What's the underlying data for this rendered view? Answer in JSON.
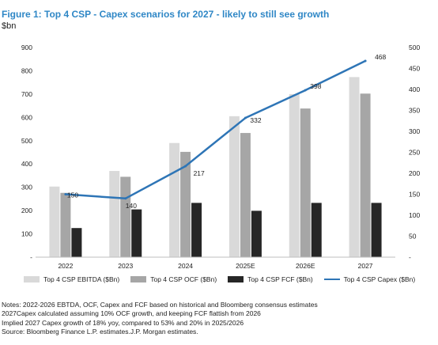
{
  "title": "Figure 1: Top 4 CSP - Capex scenarios for 2027 - likely to still see growth",
  "unit_label": "$bn",
  "chart_data": {
    "type": "bar",
    "categories": [
      "2022",
      "2023",
      "2024",
      "2025E",
      "2026E",
      "2027"
    ],
    "series": [
      {
        "name": "Top 4 CSP EBITDA ($Bn)",
        "kind": "bar",
        "axis": "left",
        "color": "#d9d9d9",
        "values": [
          303,
          370,
          490,
          605,
          700,
          773
        ]
      },
      {
        "name": "Top 4 CSP OCF ($Bn)",
        "kind": "bar",
        "axis": "left",
        "color": "#a6a6a6",
        "values": [
          276,
          345,
          452,
          533,
          638,
          702
        ]
      },
      {
        "name": "Top 4 CSP FCF ($Bn)",
        "kind": "bar",
        "axis": "left",
        "color": "#262626",
        "values": [
          125,
          205,
          233,
          199,
          233,
          233
        ]
      },
      {
        "name": "Top 4 CSP Capex ($Bn)",
        "kind": "line",
        "axis": "right",
        "color": "#2e75b6",
        "values": [
          150,
          140,
          217,
          332,
          398,
          468
        ]
      }
    ],
    "data_labels": [
      "150",
      "140",
      "217",
      "332",
      "398",
      "468"
    ],
    "y_left": {
      "min": 0,
      "max": 900,
      "step": 100,
      "ticks": [
        "-",
        "100",
        "200",
        "300",
        "400",
        "500",
        "600",
        "700",
        "800",
        "900"
      ]
    },
    "y_right": {
      "min": 0,
      "max": 500,
      "step": 50,
      "ticks": [
        "-",
        "50",
        "100",
        "150",
        "200",
        "250",
        "300",
        "350",
        "400",
        "450",
        "500"
      ]
    },
    "grid": false,
    "legend_position": "bottom"
  },
  "notes": [
    "Notes: 2022-2026 EBTDA, OCF, Capex and FCF based on historical and Bloomberg consensus estimates",
    "2027Capex calculated assuming 10% OCF growth, and keeping FCF flattish from 2026",
    "Implied 2027 Capex growth of 18% yoy, compared to 53% and 20% in 2025/2026",
    "Source: Bloomberg Finance L.P. estimates.J.P. Morgan estimates."
  ]
}
